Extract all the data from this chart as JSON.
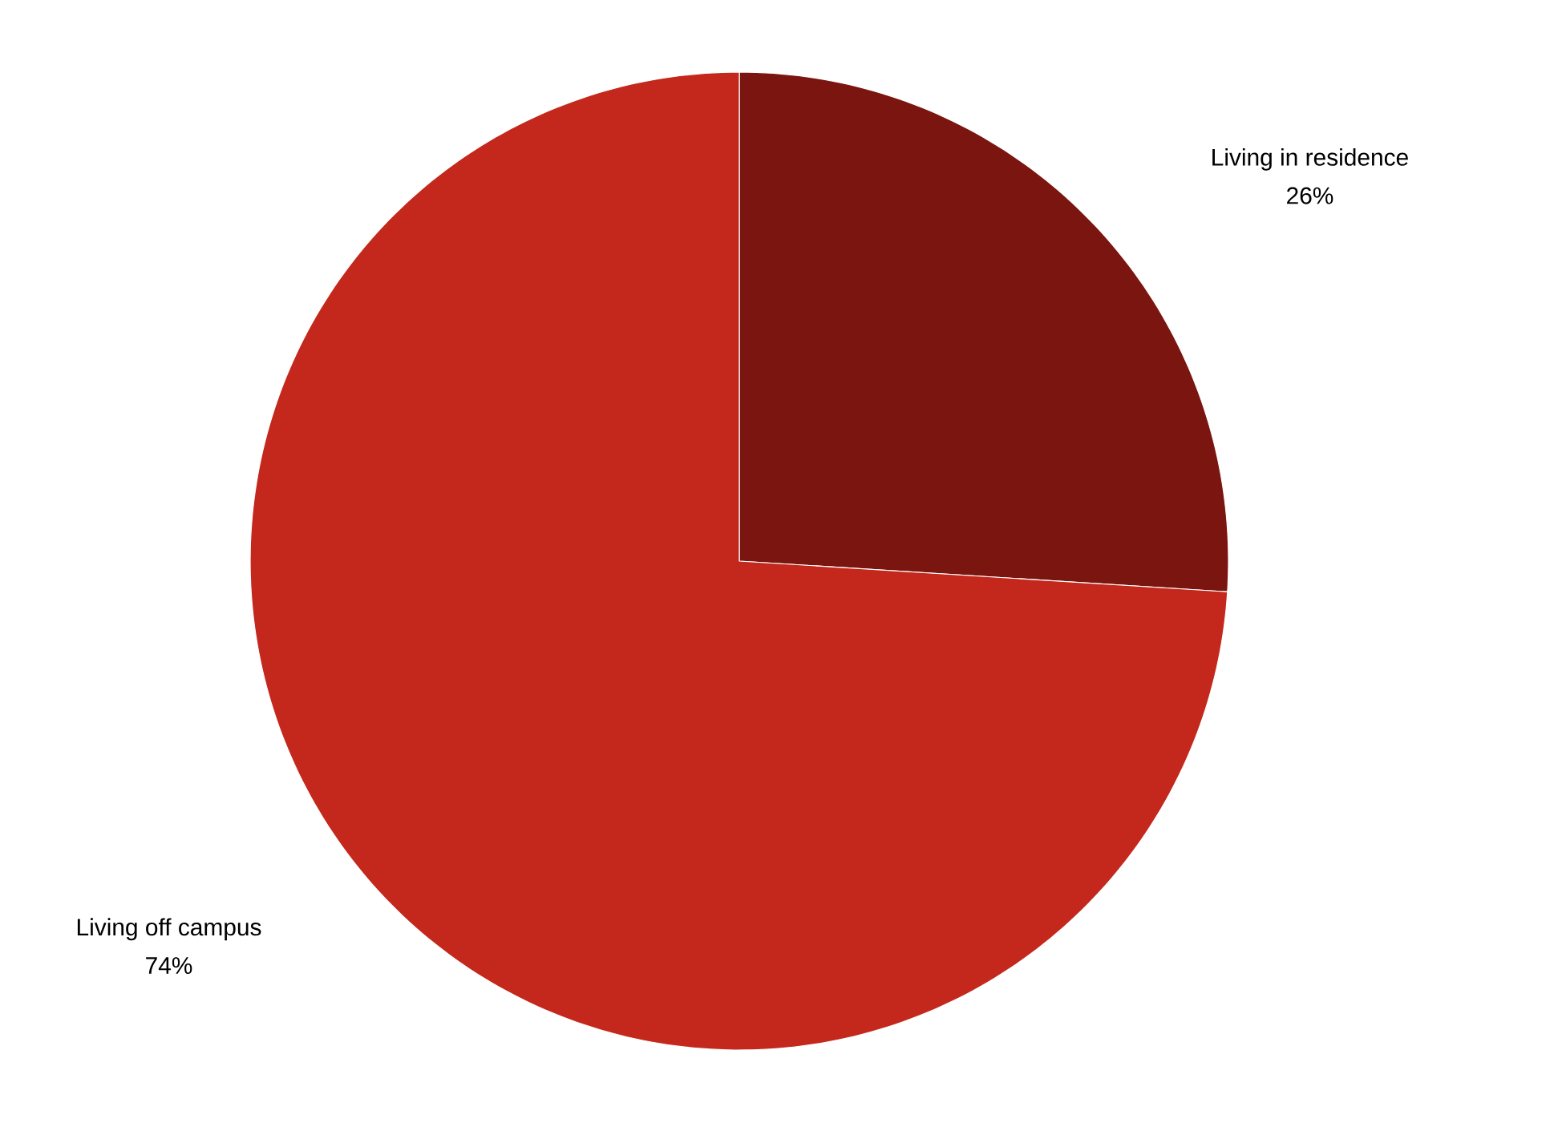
{
  "chart_data": {
    "type": "pie",
    "categories": [
      "Living in residence",
      "Living off campus"
    ],
    "values": [
      26,
      74
    ],
    "value_labels": [
      "26%",
      "74%"
    ],
    "colors": [
      "#7a1510",
      "#c4281c"
    ]
  }
}
